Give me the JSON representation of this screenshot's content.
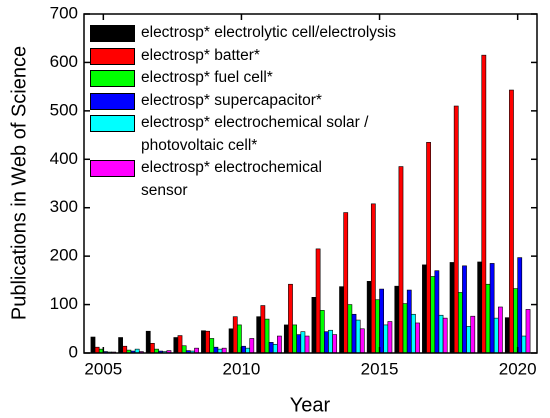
{
  "chart_data": {
    "type": "bar",
    "ylabel": "Publications in Web of Science",
    "xlabel": "Year",
    "categories": [
      2005,
      2006,
      2007,
      2008,
      2009,
      2010,
      2011,
      2012,
      2013,
      2014,
      2015,
      2016,
      2017,
      2018,
      2019,
      2020
    ],
    "series": [
      {
        "name": "electrosp* electrolytic cell/electrolysis",
        "color": "#000000",
        "values": [
          33,
          32,
          45,
          32,
          46,
          50,
          75,
          58,
          115,
          137,
          148,
          138,
          182,
          187,
          188,
          73
        ]
      },
      {
        "name": "electrosp* batter*",
        "color": "#ff0000",
        "values": [
          12,
          14,
          20,
          36,
          45,
          75,
          98,
          142,
          215,
          290,
          308,
          385,
          435,
          510,
          615,
          543
        ]
      },
      {
        "name": "electrosp* fuel cell*",
        "color": "#00ff00",
        "values": [
          8,
          6,
          8,
          15,
          30,
          58,
          70,
          58,
          88,
          100,
          110,
          102,
          158,
          125,
          142,
          133
        ]
      },
      {
        "name": "electrosp* supercapacitor*",
        "color": "#0000ff",
        "values": [
          3,
          4,
          4,
          5,
          12,
          14,
          22,
          38,
          44,
          80,
          132,
          130,
          170,
          180,
          185,
          197
        ]
      },
      {
        "name": "electrosp* electrochemical solar /\nphotovoltaic cell*",
        "color": "#00ffff",
        "values": [
          2,
          8,
          3,
          4,
          8,
          10,
          18,
          44,
          47,
          68,
          58,
          80,
          78,
          55,
          72,
          35
        ]
      },
      {
        "name": "electrosp* electrochemical\nsensor",
        "color": "#ff00ff",
        "values": [
          2,
          3,
          5,
          10,
          10,
          30,
          35,
          35,
          38,
          50,
          65,
          62,
          72,
          76,
          95,
          90
        ]
      }
    ],
    "xlim": [
      2004.3,
      2020.7
    ],
    "xticks": [
      2005,
      2010,
      2015,
      2020
    ],
    "ylim": [
      0,
      700
    ],
    "yticks": [
      0,
      100,
      200,
      300,
      400,
      500,
      600,
      700
    ],
    "legend": "upper left"
  }
}
